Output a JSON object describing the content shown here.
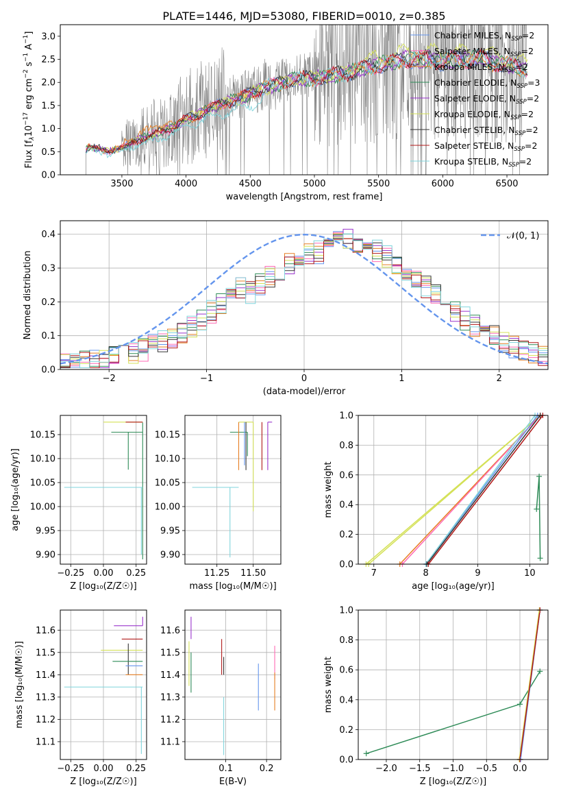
{
  "figure": {
    "title": "PLATE=1446, MJD=53080, FIBERID=0010, z=0.385"
  },
  "colors": {
    "Chabrier MILES": "#6495ed",
    "Salpeter MILES": "#ff69b4",
    "Kroupa MILES": "#e67e22",
    "Chabrier ELODIE": "#2e8b57",
    "Salpeter ELODIE": "#9932cc",
    "Kroupa ELODIE": "#d4e157",
    "Chabrier STELIB": "#333333",
    "Salpeter STELIB": "#b01818",
    "Kroupa STELIB": "#7fd4dc",
    "data": "#808080",
    "normal": "#6495ed"
  },
  "legend_entries": [
    {
      "model": "Chabrier MILES",
      "n": "2"
    },
    {
      "model": "Salpeter MILES",
      "n": "2"
    },
    {
      "model": "Kroupa MILES",
      "n": "2"
    },
    {
      "model": "Chabrier ELODIE",
      "n": "3"
    },
    {
      "model": "Salpeter ELODIE",
      "n": "2"
    },
    {
      "model": "Kroupa ELODIE",
      "n": "2"
    },
    {
      "model": "Chabrier STELIB",
      "n": "2"
    },
    {
      "model": "Salpeter STELIB",
      "n": "2"
    },
    {
      "model": "Kroupa STELIB",
      "n": "2"
    }
  ],
  "chart_data": [
    {
      "id": "spectrum",
      "type": "line",
      "xlabel": "wavelength [Angstrom, rest frame]",
      "ylabel_html": "Flux [f<tspan font-style='italic' font-size='9' dy='3'>λ</tspan><tspan dy='-3'>10</tspan><tspan font-size='9' dy='-6'>−17</tspan><tspan dy='6'> erg cm</tspan><tspan font-size='9' dy='-6'>−2</tspan><tspan dy='6'> s</tspan><tspan font-size='9' dy='-6'>−1</tspan><tspan dy='6'> A</tspan><tspan font-size='9' dy='-6'>−1</tspan><tspan dy='6'>]</tspan>",
      "xlim": [
        3020,
        6820
      ],
      "ylim": [
        0,
        3.25
      ],
      "xticks": [
        3500,
        4000,
        4500,
        5000,
        5500,
        6000,
        6500
      ],
      "yticks": [
        0.0,
        0.5,
        1.0,
        1.5,
        2.0,
        2.5,
        3.0
      ],
      "legend_loc": "upper right",
      "model_continuum": {
        "x": [
          3220,
          3240,
          3300,
          3400,
          3500,
          3600,
          3700,
          3800,
          3900,
          4000,
          4100,
          4200,
          4300,
          4400,
          4500,
          4600,
          4700,
          4800,
          4900,
          5000,
          5100,
          5200,
          5300,
          5400,
          5500,
          5600,
          5700,
          5800,
          5900,
          6000,
          6100,
          6200,
          6300,
          6400,
          6500,
          6600,
          6650
        ],
        "y": [
          0.55,
          0.62,
          0.6,
          0.52,
          0.6,
          0.75,
          0.85,
          0.95,
          1.05,
          1.25,
          1.35,
          1.5,
          1.6,
          1.7,
          1.8,
          1.95,
          2.0,
          2.1,
          2.15,
          2.15,
          2.2,
          2.25,
          2.3,
          2.4,
          2.45,
          2.5,
          2.6,
          2.55,
          2.6,
          2.5,
          2.6,
          2.55,
          2.6,
          2.5,
          2.45,
          2.4,
          2.35
        ]
      }
    },
    {
      "id": "residuals",
      "type": "histogram",
      "xlabel": "(data-model)/error",
      "ylabel": "Normed distribution",
      "xlim": [
        -2.5,
        2.5
      ],
      "ylim": [
        0,
        0.44
      ],
      "xticks": [
        -2,
        -1,
        0,
        1,
        2
      ],
      "yticks": [
        0.0,
        0.1,
        0.2,
        0.3,
        0.4
      ],
      "bin_width": 0.1,
      "grid": true,
      "legend_label": "𝒩(0, 1)",
      "legend_loc": "upper right"
    },
    {
      "id": "age-vs-Z",
      "type": "errorbar",
      "xlabel": "Z [log₁₀(Z/Z☉)]",
      "ylabel": "age  [log₁₀(age/yr)]",
      "xlim": [
        -0.33,
        0.33
      ],
      "ylim": [
        9.88,
        10.19
      ],
      "xticks": [
        -0.25,
        0.0,
        0.25
      ],
      "yticks": [
        9.9,
        9.95,
        10.0,
        10.05,
        10.1,
        10.15
      ],
      "grid": true,
      "points": [
        {
          "model": "Kroupa ELODIE",
          "x": 0.3,
          "xerr": [
            0.3,
            0.0
          ],
          "y": 10.176,
          "yerr": [
            0.0,
            0.0
          ]
        },
        {
          "model": "Salpeter STELIB",
          "x": 0.3,
          "xerr": [
            0.13,
            0.0
          ],
          "y": 10.176,
          "yerr": [
            0.0,
            0.0
          ]
        },
        {
          "model": "Chabrier ELODIE",
          "x": 0.19,
          "xerr": [
            0.13,
            0.11
          ],
          "y": 10.155,
          "yerr": [
            0.078,
            0.0
          ]
        },
        {
          "model": "Chabrier ELODIE",
          "x": 0.3,
          "xerr": [
            0.0,
            0.0
          ],
          "y": 10.155,
          "yerr": [
            0.265,
            0.02
          ]
        },
        {
          "model": "Kroupa STELIB",
          "x": 0.29,
          "xerr": [
            0.59,
            0.01
          ],
          "y": 10.04,
          "yerr": [
            0.14,
            0.0
          ]
        }
      ]
    },
    {
      "id": "age-vs-mass",
      "type": "errorbar",
      "xlabel": "mass [log₁₀(M/M☉)]",
      "ylabel": "",
      "xlim": [
        11.03,
        11.69
      ],
      "ylim": [
        9.88,
        10.19
      ],
      "xticks": [
        11.25,
        11.5
      ],
      "yticks": [
        9.9,
        9.95,
        10.0,
        10.05,
        10.1,
        10.15
      ],
      "grid": true,
      "points": [
        {
          "model": "Salpeter ELODIE",
          "x": 11.6,
          "xerr": [
            0.0,
            0.03
          ],
          "y": 10.176,
          "yerr": [
            0.1,
            0.0
          ]
        },
        {
          "model": "Kroupa ELODIE",
          "x": 11.5,
          "xerr": [
            0.1,
            0.0
          ],
          "y": 10.176,
          "yerr": [
            0.186,
            0.0
          ]
        },
        {
          "model": "Salpeter STELIB",
          "x": 11.56,
          "xerr": [
            0.0,
            0.0
          ],
          "y": 10.176,
          "yerr": [
            0.1,
            0.0
          ]
        },
        {
          "model": "Chabrier STELIB",
          "x": 11.45,
          "xerr": [
            0.0,
            0.0
          ],
          "y": 10.176,
          "yerr": [
            0.1,
            0.0
          ]
        },
        {
          "model": "Chabrier ELODIE",
          "x": 11.46,
          "xerr": [
            0.12,
            0.0
          ],
          "y": 10.155,
          "yerr": [
            0.05,
            0.0
          ]
        },
        {
          "model": "Kroupa MILES",
          "x": 11.4,
          "xerr": [
            0.0,
            0.0
          ],
          "y": 10.176,
          "yerr": [
            0.1,
            0.0
          ]
        },
        {
          "model": "Chabrier MILES",
          "x": 11.44,
          "xerr": [
            0.0,
            0.0
          ],
          "y": 10.176,
          "yerr": [
            0.09,
            0.0
          ]
        },
        {
          "model": "Kroupa STELIB",
          "x": 11.34,
          "xerr": [
            0.26,
            0.06
          ],
          "y": 10.04,
          "yerr": [
            0.146,
            0.0
          ]
        }
      ]
    },
    {
      "id": "weight-vs-age",
      "type": "line",
      "xlabel": "age  [log₁₀(age/yr)]",
      "ylabel": "mass weight",
      "xlim": [
        6.7,
        10.35
      ],
      "ylim": [
        0,
        1.0
      ],
      "xticks": [
        7,
        8,
        9,
        10
      ],
      "yticks": [
        0.0,
        0.2,
        0.4,
        0.6,
        0.8,
        1.0
      ],
      "grid": true,
      "series": [
        {
          "model": "Kroupa ELODIE",
          "x": [
            6.9,
            10.2
          ],
          "y": [
            0.0,
            1.0
          ]
        },
        {
          "model": "Kroupa ELODIE",
          "x": [
            6.85,
            10.2
          ],
          "y": [
            0.0,
            1.0
          ]
        },
        {
          "model": "Kroupa MILES",
          "x": [
            7.5,
            10.2
          ],
          "y": [
            0.0,
            1.0
          ]
        },
        {
          "model": "Salpeter MILES",
          "x": [
            7.55,
            10.2
          ],
          "y": [
            0.0,
            1.0
          ]
        },
        {
          "model": "Chabrier MILES",
          "x": [
            8.0,
            10.15
          ],
          "y": [
            0.0,
            1.0
          ]
        },
        {
          "model": "Kroupa STELIB",
          "x": [
            8.0,
            10.1
          ],
          "y": [
            0.0,
            1.0
          ]
        },
        {
          "model": "Chabrier STELIB",
          "x": [
            8.02,
            10.2
          ],
          "y": [
            0.0,
            1.0
          ]
        },
        {
          "model": "Salpeter STELIB",
          "x": [
            8.05,
            10.25
          ],
          "y": [
            0.0,
            1.0
          ]
        },
        {
          "model": "Chabrier ELODIE",
          "x": [
            10.13,
            10.18,
            10.2
          ],
          "y": [
            0.37,
            0.59,
            0.04
          ]
        }
      ]
    },
    {
      "id": "mass-vs-Z",
      "type": "errorbar",
      "xlabel": "Z [log₁₀(Z/Z☉)]",
      "ylabel": "mass [log₁₀(M/M☉)]",
      "xlim": [
        -0.33,
        0.33
      ],
      "ylim": [
        11.02,
        11.69
      ],
      "xticks": [
        -0.25,
        0.0,
        0.25
      ],
      "yticks": [
        11.1,
        11.2,
        11.3,
        11.4,
        11.5,
        11.6
      ],
      "grid": true,
      "points": [
        {
          "model": "Salpeter ELODIE",
          "x": 0.3,
          "xerr": [
            0.22,
            0.0
          ],
          "y": 11.62,
          "yerr": [
            0.0,
            0.04
          ]
        },
        {
          "model": "Salpeter STELIB",
          "x": 0.3,
          "xerr": [
            0.16,
            0.0
          ],
          "y": 11.56,
          "yerr": [
            0.0,
            0.0
          ]
        },
        {
          "model": "Kroupa ELODIE",
          "x": 0.3,
          "xerr": [
            0.32,
            0.0
          ],
          "y": 11.51,
          "yerr": [
            0.0,
            0.0
          ]
        },
        {
          "model": "Chabrier STELIB",
          "x": 0.19,
          "xerr": [
            0.0,
            0.0
          ],
          "y": 11.48,
          "yerr": [
            0.08,
            0.06
          ]
        },
        {
          "model": "Chabrier ELODIE",
          "x": 0.3,
          "xerr": [
            0.23,
            0.0
          ],
          "y": 11.46,
          "yerr": [
            0.0,
            0.0
          ]
        },
        {
          "model": "Chabrier MILES",
          "x": 0.3,
          "xerr": [
            0.13,
            0.0
          ],
          "y": 11.44,
          "yerr": [
            0.0,
            0.0
          ]
        },
        {
          "model": "Kroupa MILES",
          "x": 0.3,
          "xerr": [
            0.13,
            0.0
          ],
          "y": 11.4,
          "yerr": [
            0.0,
            0.0
          ]
        },
        {
          "model": "Kroupa STELIB",
          "x": 0.29,
          "xerr": [
            0.59,
            0.01
          ],
          "y": 11.345,
          "yerr": [
            0.3,
            0.0
          ]
        }
      ]
    },
    {
      "id": "mass-vs-EBV",
      "type": "errorbar",
      "xlabel": "E(B-V)",
      "ylabel": "",
      "xlim": [
        0.0,
        0.235
      ],
      "ylim": [
        11.02,
        11.69
      ],
      "xticks": [
        0.1,
        0.2
      ],
      "yticks": [
        11.1,
        11.2,
        11.3,
        11.4,
        11.5,
        11.6
      ],
      "grid": true,
      "points": [
        {
          "model": "Salpeter ELODIE",
          "x": 0.015,
          "y": 11.62,
          "yerr": [
            0.06,
            0.04
          ]
        },
        {
          "model": "Kroupa ELODIE",
          "x": 0.01,
          "y": 11.5,
          "yerr": [
            0.15,
            0.05
          ]
        },
        {
          "model": "Chabrier ELODIE",
          "x": 0.015,
          "y": 11.4,
          "yerr": [
            0.08,
            0.1
          ]
        },
        {
          "model": "Salpeter STELIB",
          "x": 0.09,
          "y": 11.47,
          "yerr": [
            0.07,
            0.09
          ]
        },
        {
          "model": "Chabrier STELIB",
          "x": 0.095,
          "y": 11.44,
          "yerr": [
            0.04,
            0.04
          ]
        },
        {
          "model": "Kroupa STELIB",
          "x": 0.095,
          "y": 11.2,
          "yerr": [
            0.16,
            0.1
          ]
        },
        {
          "model": "Chabrier MILES",
          "x": 0.18,
          "y": 11.34,
          "yerr": [
            0.1,
            0.11
          ]
        },
        {
          "model": "Salpeter MILES",
          "x": 0.22,
          "y": 11.48,
          "yerr": [
            0.1,
            0.05
          ]
        },
        {
          "model": "Kroupa MILES",
          "x": 0.22,
          "y": 11.33,
          "yerr": [
            0.09,
            0.08
          ]
        }
      ]
    },
    {
      "id": "weight-vs-Z",
      "type": "line",
      "xlabel": "Z [log₁₀(Z/Z☉)]",
      "ylabel": "mass weight",
      "xlim": [
        -2.42,
        0.42
      ],
      "ylim": [
        0,
        1.0
      ],
      "xticks": [
        -2.0,
        -1.5,
        -1.0,
        -0.5,
        0.0
      ],
      "yticks": [
        0.0,
        0.2,
        0.4,
        0.6,
        0.8,
        1.0
      ],
      "grid": true,
      "series": [
        {
          "model": "Chabrier ELODIE",
          "x": [
            -2.3,
            0.0,
            0.3
          ],
          "y": [
            0.04,
            0.37,
            0.59
          ]
        },
        {
          "model": "Kroupa STELIB",
          "x": [
            0.0,
            0.3
          ],
          "y": [
            0.0,
            1.0
          ]
        },
        {
          "model": "Chabrier MILES",
          "x": [
            0.01,
            0.3
          ],
          "y": [
            0.0,
            1.0
          ]
        },
        {
          "model": "Kroupa ELODIE",
          "x": [
            -0.01,
            0.29
          ],
          "y": [
            0.0,
            1.0
          ]
        },
        {
          "model": "Salpeter STELIB",
          "x": [
            0.0,
            0.3
          ],
          "y": [
            0.0,
            1.0
          ]
        }
      ]
    }
  ]
}
